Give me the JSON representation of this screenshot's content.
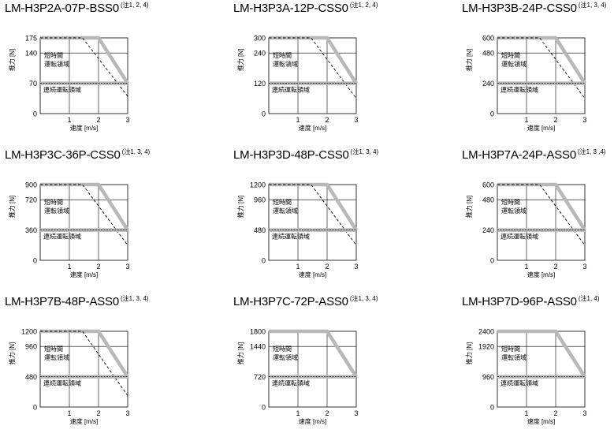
{
  "chart_data": [
    {
      "type": "line",
      "model": "LM-H3P2A-07P-BSS0",
      "note": "(注1, 2, 4)",
      "ylabel": "推力 [N]",
      "xlabel": "速度 [m/s]",
      "xticks": [
        "1",
        "2",
        "3"
      ],
      "yticks": [
        "0",
        "70",
        "140",
        "175"
      ],
      "ymax": 175,
      "xlim": [
        0,
        3
      ],
      "peak_label": [
        "短時間",
        "運転領域"
      ],
      "cont_label": "連続運転領域",
      "series": [
        {
          "style": "solid-gray",
          "x": [
            0,
            2,
            3
          ],
          "y": [
            175,
            175,
            70
          ]
        },
        {
          "style": "dashed",
          "x": [
            0,
            1.45,
            3
          ],
          "y": [
            175,
            175,
            40
          ]
        },
        {
          "style": "continuous",
          "x": [
            0,
            3
          ],
          "y": [
            70,
            70
          ]
        }
      ]
    },
    {
      "type": "line",
      "model": "LM-H3P3A-12P-CSS0",
      "note": "(注1, 2, 4)",
      "ylabel": "推力 [N]",
      "xlabel": "速度 [m/s]",
      "xticks": [
        "1",
        "2",
        "3"
      ],
      "yticks": [
        "0",
        "120",
        "240",
        "300"
      ],
      "ymax": 300,
      "xlim": [
        0,
        3
      ],
      "peak_label": [
        "短時間",
        "運転領域"
      ],
      "cont_label": "連続運転領域",
      "series": [
        {
          "style": "solid-gray",
          "x": [
            0,
            2,
            3
          ],
          "y": [
            300,
            300,
            120
          ]
        },
        {
          "style": "dashed",
          "x": [
            0,
            1.45,
            3
          ],
          "y": [
            300,
            300,
            60
          ]
        },
        {
          "style": "continuous",
          "x": [
            0,
            3
          ],
          "y": [
            120,
            120
          ]
        }
      ]
    },
    {
      "type": "line",
      "model": "LM-H3P3B-24P-CSS0",
      "note": "(注1, 3, 4)",
      "ylabel": "推力 [N]",
      "xlabel": "速度 [m/s]",
      "xticks": [
        "1",
        "2",
        "3"
      ],
      "yticks": [
        "0",
        "240",
        "480",
        "600"
      ],
      "ymax": 600,
      "xlim": [
        0,
        3
      ],
      "peak_label": [
        "短時間",
        "運転領域"
      ],
      "cont_label": "連続運転領域",
      "series": [
        {
          "style": "solid-gray",
          "x": [
            0,
            2,
            3
          ],
          "y": [
            600,
            600,
            240
          ]
        },
        {
          "style": "dashed",
          "x": [
            0,
            1.45,
            3
          ],
          "y": [
            600,
            600,
            120
          ]
        },
        {
          "style": "continuous",
          "x": [
            0,
            3
          ],
          "y": [
            240,
            240
          ]
        }
      ]
    },
    {
      "type": "line",
      "model": "LM-H3P3C-36P-CSS0",
      "note": "(注1, 3, 4)",
      "ylabel": "推力 [N]",
      "xlabel": "速度 [m/s]",
      "xticks": [
        "1",
        "2",
        "3"
      ],
      "yticks": [
        "0",
        "360",
        "720",
        "900"
      ],
      "ymax": 900,
      "xlim": [
        0,
        3
      ],
      "peak_label": [
        "短時間",
        "運転領域"
      ],
      "cont_label": "連続運転領域",
      "series": [
        {
          "style": "solid-gray",
          "x": [
            0,
            2,
            3
          ],
          "y": [
            900,
            900,
            360
          ]
        },
        {
          "style": "dashed",
          "x": [
            0,
            1.45,
            3
          ],
          "y": [
            900,
            900,
            180
          ]
        },
        {
          "style": "continuous",
          "x": [
            0,
            3
          ],
          "y": [
            360,
            360
          ]
        }
      ]
    },
    {
      "type": "line",
      "model": "LM-H3P3D-48P-CSS0",
      "note": "(注1, 3, 4)",
      "ylabel": "推力 [N]",
      "xlabel": "速度 [m/s]",
      "xticks": [
        "1",
        "2",
        "3"
      ],
      "yticks": [
        "0",
        "480",
        "960",
        "1200"
      ],
      "ymax": 1200,
      "xlim": [
        0,
        3
      ],
      "peak_label": [
        "短時間",
        "運転領域"
      ],
      "cont_label": "連続運転領域",
      "series": [
        {
          "style": "solid-gray",
          "x": [
            0,
            2,
            3
          ],
          "y": [
            1200,
            1200,
            480
          ]
        },
        {
          "style": "dashed",
          "x": [
            0,
            1.45,
            3
          ],
          "y": [
            1200,
            1200,
            240
          ]
        },
        {
          "style": "continuous",
          "x": [
            0,
            3
          ],
          "y": [
            480,
            480
          ]
        }
      ]
    },
    {
      "type": "line",
      "model": "LM-H3P7A-24P-ASS0",
      "note": "(注1, 3 ,4)",
      "ylabel": "推力 [N]",
      "xlabel": "速度 [m/s]",
      "xticks": [
        "1",
        "2",
        "3"
      ],
      "yticks": [
        "0",
        "240",
        "480",
        "600"
      ],
      "ymax": 600,
      "xlim": [
        0,
        3
      ],
      "peak_label": [
        "短時間",
        "運転領域"
      ],
      "cont_label": "連続運転領域",
      "series": [
        {
          "style": "solid-gray",
          "x": [
            0,
            2,
            3
          ],
          "y": [
            600,
            600,
            240
          ]
        },
        {
          "style": "dashed",
          "x": [
            0,
            1.45,
            3
          ],
          "y": [
            600,
            600,
            120
          ]
        },
        {
          "style": "continuous",
          "x": [
            0,
            3
          ],
          "y": [
            240,
            240
          ]
        }
      ]
    },
    {
      "type": "line",
      "model": "LM-H3P7B-48P-ASS0",
      "note": "(注1, 3, 4)",
      "ylabel": "推力 [N]",
      "xlabel": "速度 [m/s]",
      "xticks": [
        "1",
        "2",
        "3"
      ],
      "yticks": [
        "0",
        "480",
        "960",
        "1200"
      ],
      "ymax": 1200,
      "xlim": [
        0,
        3
      ],
      "peak_label": [
        "短時間",
        "運転領域"
      ],
      "cont_label": "連続運転領域",
      "series": [
        {
          "style": "solid-gray",
          "x": [
            0,
            2,
            3
          ],
          "y": [
            1200,
            1200,
            480
          ]
        },
        {
          "style": "dashed",
          "x": [
            0,
            1.45,
            3
          ],
          "y": [
            1200,
            1200,
            180
          ]
        },
        {
          "style": "continuous",
          "x": [
            0,
            3
          ],
          "y": [
            480,
            480
          ]
        }
      ]
    },
    {
      "type": "line",
      "model": "LM-H3P7C-72P-ASS0",
      "note": "(注1, 3, 4)",
      "ylabel": "推力 [N]",
      "xlabel": "速度 [m/s]",
      "xticks": [
        "1",
        "2",
        "3"
      ],
      "yticks": [
        "0",
        "720",
        "1440",
        "1800"
      ],
      "ymax": 1800,
      "xlim": [
        0,
        3
      ],
      "peak_label": [
        "短時間",
        "運転領域"
      ],
      "cont_label": "連続運転領域",
      "series": [
        {
          "style": "solid-gray",
          "x": [
            0,
            2,
            3
          ],
          "y": [
            1800,
            1800,
            720
          ]
        },
        {
          "style": "continuous",
          "x": [
            0,
            3
          ],
          "y": [
            720,
            720
          ]
        }
      ]
    },
    {
      "type": "line",
      "model": "LM-H3P7D-96P-ASS0",
      "note": "(注1, 4)",
      "ylabel": "推力 [N]",
      "xlabel": "速度 [m/s]",
      "xticks": [
        "1",
        "2",
        "3"
      ],
      "yticks": [
        "0",
        "960",
        "1920",
        "2400"
      ],
      "ymax": 2400,
      "xlim": [
        0,
        3
      ],
      "peak_label": [
        "短時間",
        "運転領域"
      ],
      "cont_label": "連続運転領域",
      "series": [
        {
          "style": "solid-gray",
          "x": [
            0,
            2,
            3
          ],
          "y": [
            2400,
            2400,
            960
          ]
        },
        {
          "style": "continuous",
          "x": [
            0,
            3
          ],
          "y": [
            960,
            960
          ]
        }
      ]
    }
  ]
}
